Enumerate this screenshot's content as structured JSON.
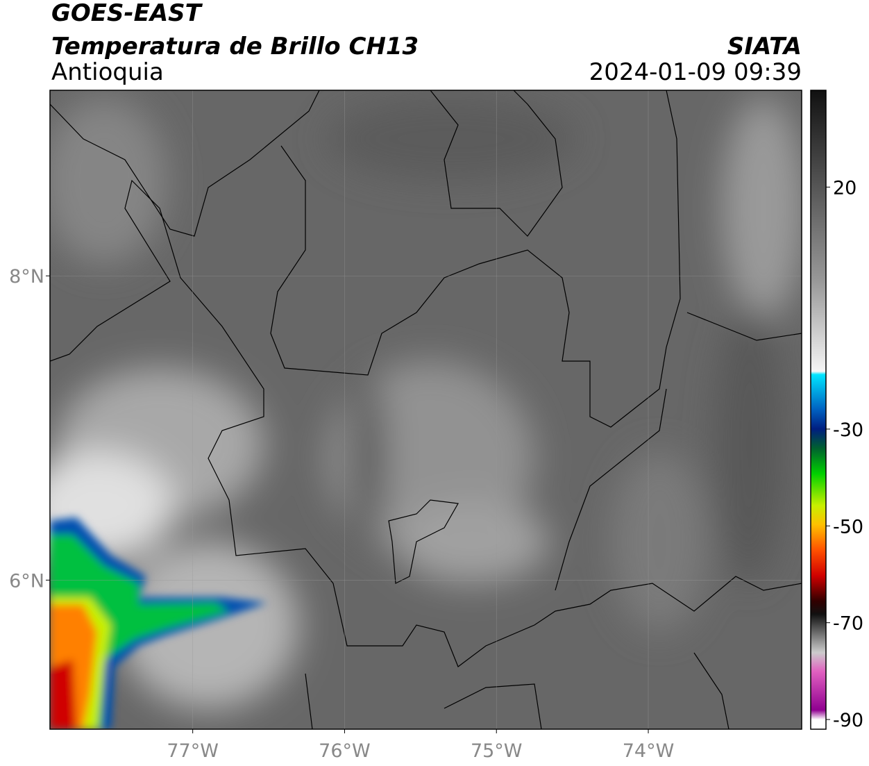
{
  "header": {
    "title": "GOES-EAST",
    "subtitle": "Temperatura de Brillo CH13",
    "region": "Antioquia",
    "source": "SIATA",
    "datetime": "2024-01-09 09:39"
  },
  "map": {
    "xlim": [
      -77.94,
      -72.99
    ],
    "ylim": [
      5.02,
      9.22
    ],
    "xticks": [
      {
        "value": -77,
        "label": "77°W"
      },
      {
        "value": -76,
        "label": "76°W"
      },
      {
        "value": -75,
        "label": "75°W"
      },
      {
        "value": -74,
        "label": "74°W"
      }
    ],
    "yticks": [
      {
        "value": 8,
        "label": "8°N"
      },
      {
        "value": 6,
        "label": "6°N"
      }
    ]
  },
  "colorbar": {
    "lim": [
      -92,
      40
    ],
    "ticks": [
      20,
      -30,
      -50,
      -70,
      -90
    ]
  }
}
